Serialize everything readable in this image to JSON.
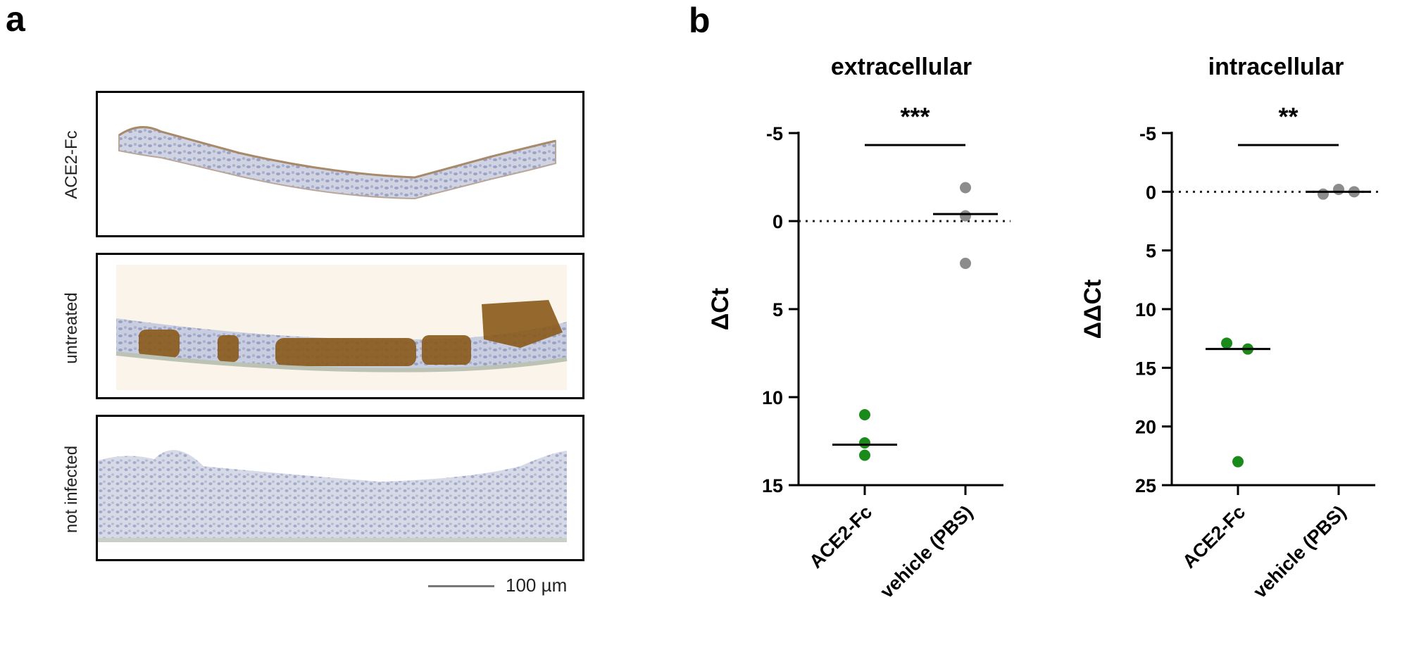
{
  "panel_a": {
    "letter": "a",
    "rows": [
      {
        "label": "ACE2-Fc",
        "stain": "light"
      },
      {
        "label": "untreated",
        "stain": "heavy-brown"
      },
      {
        "label": "not infected",
        "stain": "none"
      }
    ],
    "scale_bar": "100 µm"
  },
  "panel_b": {
    "letter": "b"
  },
  "colors": {
    "ace2_fc": "#1a8a1a",
    "vehicle": "#8c8c8c",
    "axis": "#000000"
  },
  "chart_data": [
    {
      "type": "scatter",
      "title": "extracellular",
      "ylabel": "ΔCt",
      "y_inverted": true,
      "ylim": [
        15,
        -5
      ],
      "yticks": [
        "-5",
        "0",
        "5",
        "10",
        "15"
      ],
      "ytick_values": [
        -5,
        0,
        5,
        10,
        15
      ],
      "reference_line": 0,
      "categories": [
        "ACE2-Fc",
        "vehicle (PBS)"
      ],
      "series": [
        {
          "category": "ACE2-Fc",
          "points": [
            11.0,
            12.6,
            13.3
          ],
          "median": 12.7
        },
        {
          "category": "vehicle (PBS)",
          "points": [
            -1.9,
            -0.3,
            2.4
          ],
          "median": -0.4
        }
      ],
      "significance": "***"
    },
    {
      "type": "scatter",
      "title": "intracellular",
      "ylabel": "ΔΔCt",
      "y_inverted": true,
      "ylim": [
        25,
        -5
      ],
      "yticks": [
        "-5",
        "0",
        "5",
        "10",
        "15",
        "20",
        "25"
      ],
      "ytick_values": [
        -5,
        0,
        5,
        10,
        15,
        20,
        25
      ],
      "reference_line": 0,
      "categories": [
        "ACE2-Fc",
        "vehicle (PBS)"
      ],
      "series": [
        {
          "category": "ACE2-Fc",
          "points": [
            12.9,
            13.4,
            23.0
          ],
          "median": 13.4
        },
        {
          "category": "vehicle (PBS)",
          "points": [
            0.2,
            -0.2,
            0.0
          ],
          "median": 0.0
        }
      ],
      "significance": "**"
    }
  ]
}
